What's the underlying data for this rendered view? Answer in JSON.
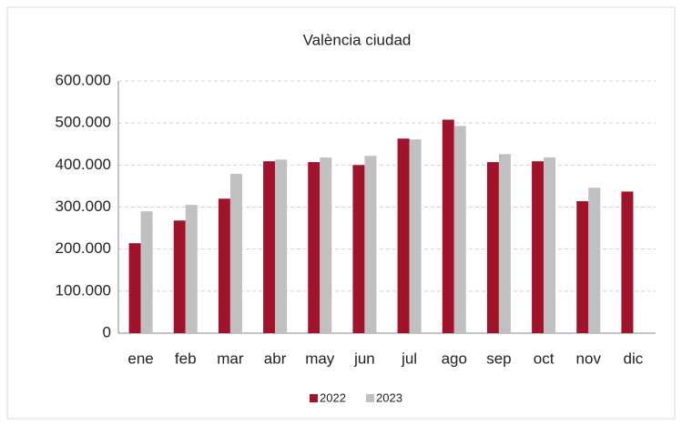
{
  "chart_data": {
    "type": "bar",
    "title": "València ciudad",
    "categories": [
      "ene",
      "feb",
      "mar",
      "abr",
      "may",
      "jun",
      "jul",
      "ago",
      "sep",
      "oct",
      "nov",
      "dic"
    ],
    "series": [
      {
        "name": "2022",
        "color": "#a0132a",
        "values": [
          214000,
          268000,
          320000,
          409000,
          407000,
          400000,
          463000,
          508000,
          407000,
          409000,
          314000,
          337000
        ]
      },
      {
        "name": "2023",
        "color": "#c0c0c0",
        "values": [
          290000,
          305000,
          379000,
          413000,
          418000,
          422000,
          461000,
          493000,
          426000,
          418000,
          346000,
          null
        ]
      }
    ],
    "ylim": [
      0,
      600000
    ],
    "yticks": [
      0,
      {
        "value": 100000,
        "label": "100.000"
      },
      {
        "value": 200000,
        "label": "200.000"
      },
      {
        "value": 300000,
        "label": "300.000"
      },
      {
        "value": 400000,
        "label": "400.000"
      },
      {
        "value": 500000,
        "label": "500.000"
      },
      {
        "value": 600000,
        "label": "600.000"
      }
    ],
    "grid": true,
    "legend": "bottom"
  }
}
